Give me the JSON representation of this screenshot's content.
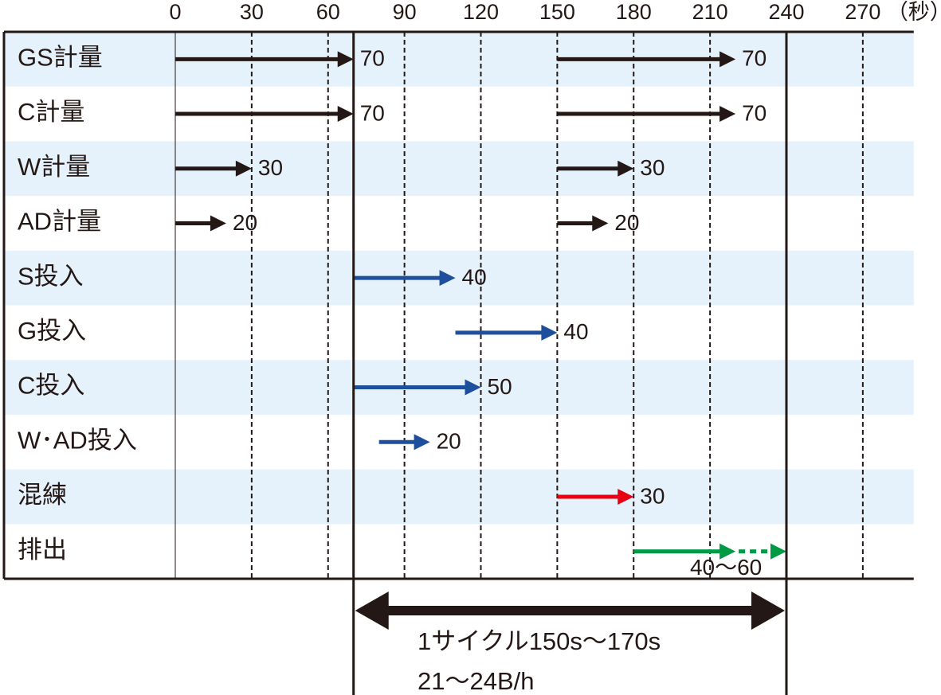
{
  "chart_data": {
    "type": "gantt",
    "xlim": [
      0,
      290
    ],
    "xticks": [
      0,
      30,
      60,
      90,
      120,
      150,
      180,
      210,
      240,
      270
    ],
    "x_unit": "（秒）",
    "row_band_color": "#e6f2fb",
    "rows": [
      {
        "name": "GS計量",
        "color": "#231815",
        "segments": [
          {
            "start": 0,
            "value": 70
          },
          {
            "start": 150,
            "value": 70
          }
        ]
      },
      {
        "name": "C計量",
        "color": "#231815",
        "segments": [
          {
            "start": 0,
            "value": 70
          },
          {
            "start": 150,
            "value": 70
          }
        ]
      },
      {
        "name": "W計量",
        "color": "#231815",
        "segments": [
          {
            "start": 0,
            "value": 30
          },
          {
            "start": 150,
            "value": 30
          }
        ]
      },
      {
        "name": "AD計量",
        "color": "#231815",
        "segments": [
          {
            "start": 0,
            "value": 20
          },
          {
            "start": 150,
            "value": 20
          }
        ]
      },
      {
        "name": "S投入",
        "color": "#1d4f9c",
        "segments": [
          {
            "start": 70,
            "value": 40
          }
        ]
      },
      {
        "name": "G投入",
        "color": "#1d4f9c",
        "segments": [
          {
            "start": 110,
            "value": 40
          }
        ]
      },
      {
        "name": "C投入",
        "color": "#1d4f9c",
        "segments": [
          {
            "start": 70,
            "value": 50
          }
        ]
      },
      {
        "name": "W･AD投入",
        "color": "#1d4f9c",
        "segments": [
          {
            "start": 80,
            "value": 20
          }
        ]
      },
      {
        "name": "混練",
        "color": "#e60012",
        "segments": [
          {
            "start": 150,
            "value": 30
          }
        ]
      },
      {
        "name": "排出",
        "color": "#009944",
        "segments": [
          {
            "start": 180,
            "value": 40,
            "max": 60,
            "value_label": "40〜60"
          }
        ]
      }
    ],
    "cycle": {
      "start": 70,
      "end": 240,
      "lines": [
        "1サイクル150s〜170s",
        "21〜24B/h"
      ]
    }
  }
}
